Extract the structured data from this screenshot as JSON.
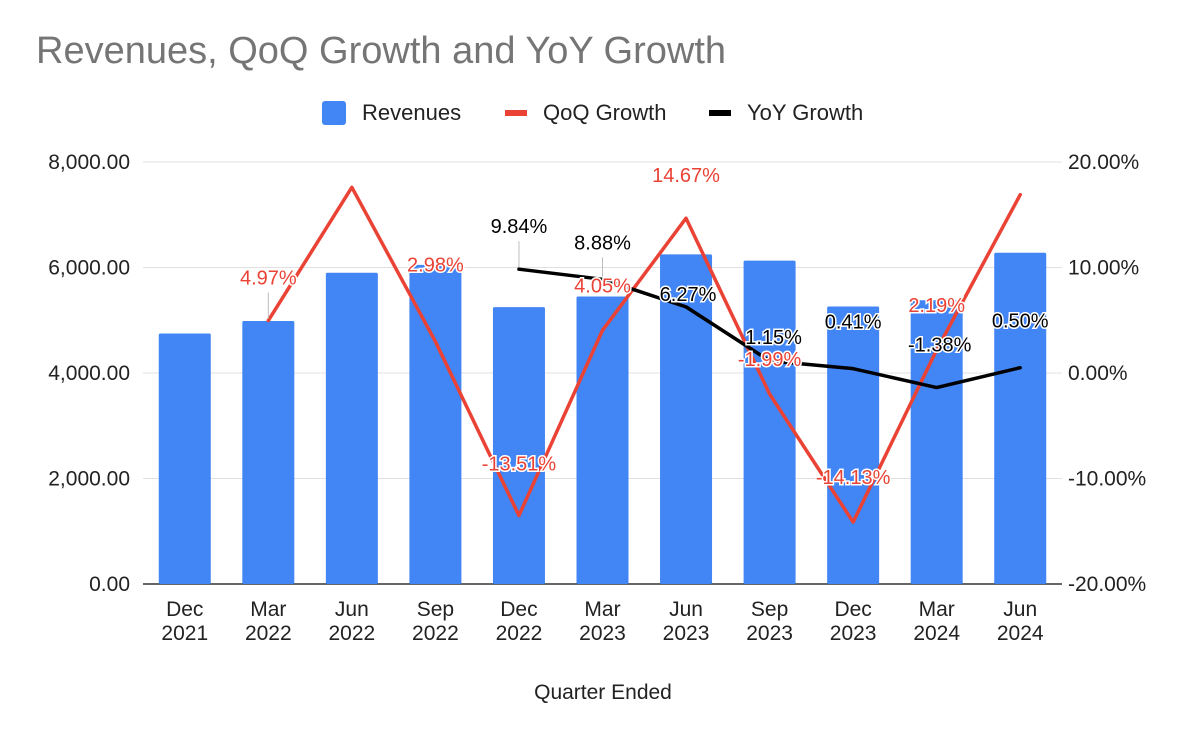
{
  "title": "Revenues, QoQ Growth and YoY Growth",
  "legend": {
    "revenues": "Revenues",
    "qoq": "QoQ Growth",
    "yoy": "YoY Growth"
  },
  "colors": {
    "revenues": "#4285f4",
    "qoq": "#ea4335",
    "yoy": "#000000",
    "axis_text": "#222222",
    "title_text": "#757575",
    "grid": "#e0e0e0"
  },
  "chart_data": {
    "type": "bar",
    "title": "Revenues, QoQ Growth and YoY Growth",
    "xlabel": "Quarter Ended",
    "ylabel": "",
    "categories": [
      [
        "Dec",
        "2021"
      ],
      [
        "Mar",
        "2022"
      ],
      [
        "Jun",
        "2022"
      ],
      [
        "Sep",
        "2022"
      ],
      [
        "Dec",
        "2022"
      ],
      [
        "Mar",
        "2023"
      ],
      [
        "Jun",
        "2023"
      ],
      [
        "Sep",
        "2023"
      ],
      [
        "Dec",
        "2023"
      ],
      [
        "Mar",
        "2024"
      ],
      [
        "Jun",
        "2024"
      ]
    ],
    "left_axis": {
      "ylim": [
        0,
        8000
      ],
      "ticks": [
        "0.00",
        "2,000.00",
        "4,000.00",
        "6,000.00",
        "8,000.00"
      ]
    },
    "right_axis": {
      "ylim": [
        -20,
        20
      ],
      "ticks": [
        "-20.00%",
        "-10.00%",
        "0.00%",
        "10.00%",
        "20.00%"
      ]
    },
    "gridlines": true,
    "legend_position": "top",
    "series": [
      {
        "name": "Revenues",
        "type": "bar",
        "axis": "left",
        "values": [
          4750,
          4985,
          5900,
          6050,
          5250,
          5450,
          6250,
          6130,
          5260,
          5380,
          6280
        ]
      },
      {
        "name": "QoQ Growth",
        "type": "line",
        "axis": "right",
        "values": [
          null,
          4.97,
          17.6,
          2.98,
          -13.51,
          4.05,
          14.67,
          -1.99,
          -14.13,
          2.19,
          16.9
        ],
        "labels": [
          null,
          "4.97%",
          null,
          "2.98%",
          "-13.51%",
          "4.05%",
          "14.67%",
          "-1.99%",
          "-14.13%",
          "2.19%",
          null
        ]
      },
      {
        "name": "YoY Growth",
        "type": "line",
        "axis": "right",
        "values": [
          null,
          null,
          null,
          null,
          9.84,
          8.88,
          6.27,
          1.15,
          0.41,
          -1.38,
          0.5
        ],
        "labels": [
          null,
          null,
          null,
          null,
          "9.84%",
          "8.88%",
          "6.27%",
          "1.15%",
          "0.41%",
          "-1.38%",
          "0.50%"
        ]
      }
    ]
  }
}
